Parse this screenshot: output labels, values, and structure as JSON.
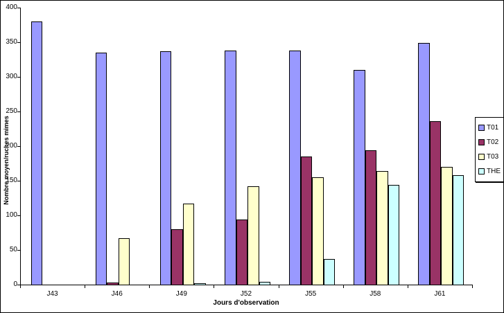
{
  "chart_data": {
    "type": "bar",
    "title": "",
    "xlabel": "Jours d'observation",
    "ylabel": "Nombre moyen/ruches  mimes",
    "categories": [
      "J43",
      "J46",
      "J49",
      "J52",
      "J55",
      "J58",
      "J61"
    ],
    "series": [
      {
        "name": "T01",
        "color": "#9999FF",
        "values": [
          380,
          335,
          337,
          338,
          338,
          310,
          349
        ]
      },
      {
        "name": "T02",
        "color": "#993366",
        "values": [
          0,
          3,
          80,
          94,
          185,
          194,
          236
        ]
      },
      {
        "name": "T03",
        "color": "#FFFFCC",
        "values": [
          0,
          67,
          117,
          142,
          155,
          164,
          170
        ]
      },
      {
        "name": "THE",
        "color": "#CCFFFF",
        "values": [
          0,
          0,
          2,
          4,
          37,
          144,
          158
        ]
      }
    ],
    "ylim": [
      0,
      400
    ],
    "ytick_step": 50,
    "y_ticks": [
      "0",
      "50",
      "100",
      "150",
      "200",
      "250",
      "300",
      "350",
      "400"
    ],
    "grid": false,
    "legend_position": "right",
    "axis_color": "#000000",
    "background_color": "#FFFFFF"
  }
}
